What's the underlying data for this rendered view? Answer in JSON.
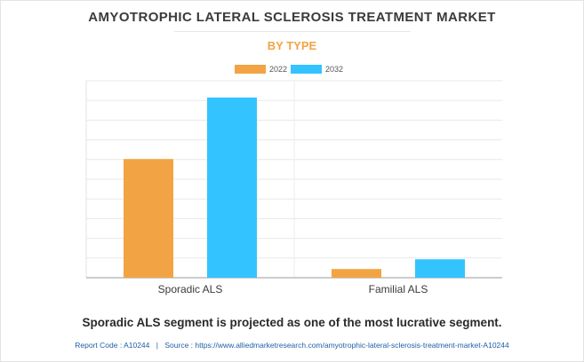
{
  "header": {
    "title": "AMYOTROPHIC LATERAL SCLEROSIS TREATMENT MARKET",
    "subtitle": "BY TYPE"
  },
  "chart_data": {
    "type": "bar",
    "categories": [
      "Sporadic ALS",
      "Familial ALS"
    ],
    "series": [
      {
        "name": "2022",
        "color": "#f2a444",
        "values": [
          602.5,
          44.2
        ]
      },
      {
        "name": "2032",
        "color": "#33c4ff",
        "values": [
          914.9,
          93.6
        ]
      }
    ],
    "ylim": [
      0,
      1000
    ],
    "y_tick_labels_shown": false,
    "grid": true,
    "legend": "top-center"
  },
  "caption": "Sporadic ALS segment is projected as one of the most lucrative segment.",
  "footer": {
    "report_code": "Report Code : A10244",
    "separator": "|",
    "source": "Source : https://www.alliedmarketresearch.com/amyotrophic-lateral-sclerosis-treatment-market-A10244"
  }
}
